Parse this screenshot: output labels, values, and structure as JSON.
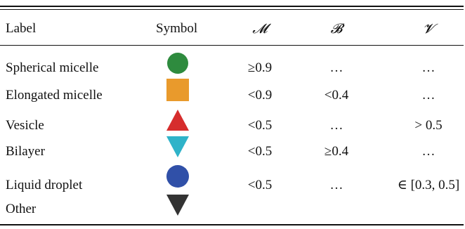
{
  "table": {
    "headers": {
      "label": "Label",
      "symbol": "Symbol",
      "m": "𝓜",
      "b": "𝓑",
      "v": "𝓥"
    },
    "rows": [
      {
        "label": "Spherical micelle",
        "symbol": "green-circle-icon",
        "color": "#2e8b3e",
        "m": "≥0.9",
        "b": "…",
        "v": "…"
      },
      {
        "label": "Elongated micelle",
        "symbol": "orange-square-icon",
        "color": "#e99a2c",
        "m": "<0.9",
        "b": "<0.4",
        "v": "…"
      },
      {
        "label": "Vesicle",
        "symbol": "red-triangle-up-icon",
        "color": "#d62d2d",
        "m": "<0.5",
        "b": "…",
        "v": "> 0.5"
      },
      {
        "label": "Bilayer",
        "symbol": "cyan-triangle-down-icon",
        "color": "#2fb3c9",
        "m": "<0.5",
        "b": "≥0.4",
        "v": "…"
      },
      {
        "label": "Liquid droplet",
        "symbol": "blue-circle-icon",
        "color": "#3050a8",
        "m": "<0.5",
        "b": "…",
        "v": "∈ [0.3, 0.5]"
      },
      {
        "label": "Other",
        "symbol": "black-triangle-down-icon",
        "color": "#333333",
        "m": "",
        "b": "",
        "v": ""
      }
    ]
  }
}
